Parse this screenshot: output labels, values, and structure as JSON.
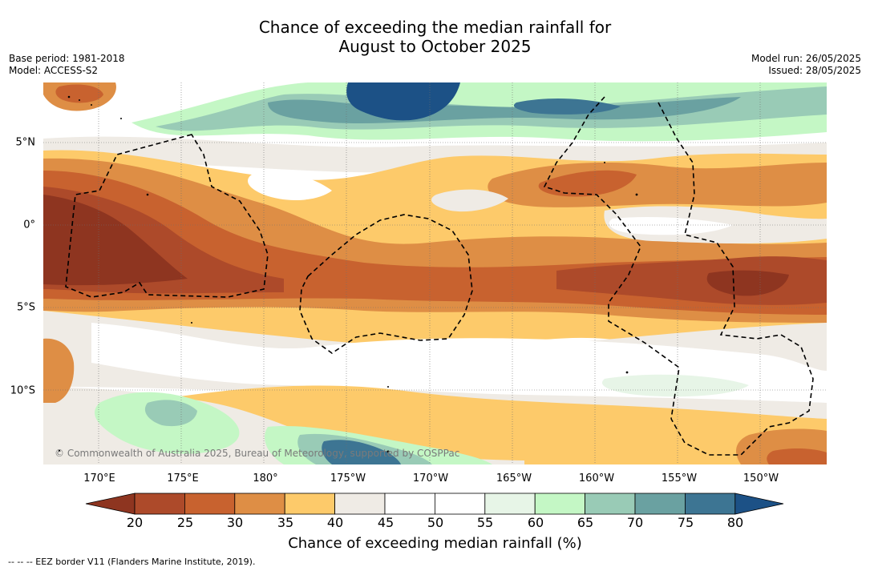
{
  "title": {
    "line1": "Chance of exceeding the median rainfall for",
    "line2": "August to October 2025"
  },
  "meta": {
    "base_period": "Base period: 1981-2018",
    "model": "Model: ACCESS-S2",
    "model_run": "Model run: 26/05/2025",
    "issued": "Issued: 28/05/2025"
  },
  "map": {
    "longitude_labels": [
      "170°E",
      "175°E",
      "180°",
      "175°W",
      "170°W",
      "165°W",
      "160°W",
      "155°W",
      "150°W"
    ],
    "latitude_labels": [
      "5°N",
      "0°",
      "5°S",
      "10°S"
    ],
    "copyright": "© Commonwealth of Australia 2025, Bureau of Meteorology, supported by COSPPac"
  },
  "colorbar": {
    "title": "Chance of exceeding median rainfall (%)",
    "tick_labels": [
      "20",
      "25",
      "30",
      "35",
      "40",
      "45",
      "50",
      "55",
      "60",
      "65",
      "70",
      "75",
      "80"
    ],
    "colors": [
      "#8e3520",
      "#ad4a2a",
      "#c8622f",
      "#de8e45",
      "#fdca6a",
      "#efebe5",
      "#ffffff",
      "#ffffff",
      "#e7f5e7",
      "#c4f7c5",
      "#99cbb6",
      "#6aa1a1",
      "#3d7593",
      "#1c5186"
    ]
  },
  "footnote": "-- -- -- EEZ border V11 (Flanders Marine Institute, 2019)."
}
